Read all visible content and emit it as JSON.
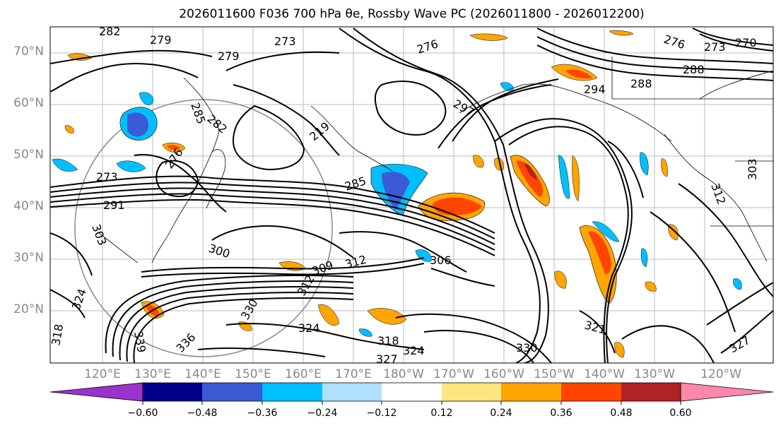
{
  "title": "2026011600 F036 700 hPa θe, Rossby Wave PC (2026011800 - 2026012200)",
  "lat_labels": [
    "70°N",
    "60°N",
    "50°N",
    "40°N",
    "30°N",
    "20°N"
  ],
  "lon_labels": [
    "120°E",
    "130°E",
    "140°E",
    "150°E",
    "160°E",
    "170°E",
    "180°W",
    "170°W",
    "160°W",
    "150°W",
    "140°W",
    "130°W",
    "120°W"
  ],
  "colorbar": {
    "tick_labels": [
      "−0.60",
      "−0.48",
      "−0.36",
      "−0.24",
      "−0.12",
      "0.12",
      "0.24",
      "0.36",
      "0.48",
      "0.60"
    ],
    "colors": [
      "#9933cc",
      "#00008b",
      "#3b5bd6",
      "#00bfff",
      "#b0e0ff",
      "#ffffff",
      "#ffe680",
      "#ffa500",
      "#ff4500",
      "#b22222",
      "#ff88aa"
    ]
  },
  "contour_labels": [
    "282",
    "279",
    "273",
    "279",
    "276",
    "276",
    "273",
    "270",
    "288",
    "285",
    "282",
    "294",
    "288",
    "297",
    "219",
    "273",
    "276",
    "285",
    "291",
    "300",
    "303",
    "309",
    "312",
    "306",
    "312",
    "324",
    "330",
    "336",
    "339",
    "318",
    "324",
    "327",
    "330",
    "324",
    "327",
    "318",
    "303",
    "312",
    "321"
  ],
  "fill_colors": {
    "neg1": "#00bfff",
    "neg2": "#3b5bd6",
    "pos1": "#ffa500",
    "pos2": "#ff4500",
    "pos3": "#b22222"
  }
}
